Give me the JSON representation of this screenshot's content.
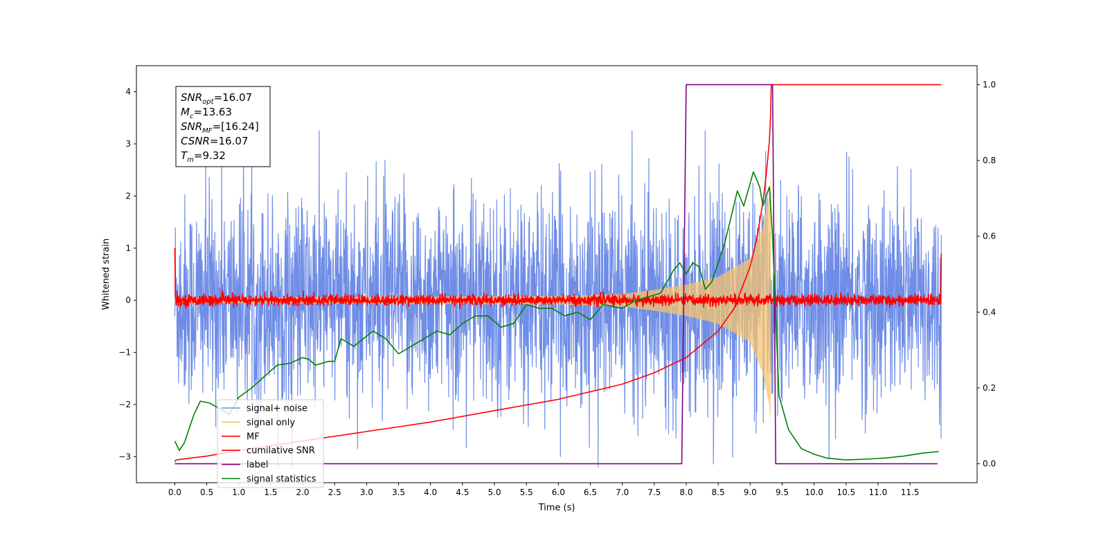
{
  "chart_data": {
    "type": "line",
    "title": "",
    "xlabel": "Time (s)",
    "ylabel": "Whitened strain",
    "xlim": [
      -0.6,
      12.55
    ],
    "ylim": [
      -3.5,
      4.5
    ],
    "y2lim": [
      -0.05,
      1.05
    ],
    "x_ticks": [
      0.0,
      0.5,
      1.0,
      1.5,
      2.0,
      2.5,
      3.0,
      3.5,
      4.0,
      4.5,
      5.0,
      5.5,
      6.0,
      6.5,
      7.0,
      7.5,
      8.0,
      8.5,
      9.0,
      9.5,
      10.0,
      10.5,
      11.0,
      11.5
    ],
    "x_tick_labels": [
      "0.0",
      "0.5",
      "1.0",
      "1.5",
      "2.0",
      "2.5",
      "3.0",
      "3.5",
      "4.0",
      "4.5",
      "5.0",
      "5.5",
      "6.0",
      "6.5",
      "7.0",
      "7.5",
      "8.0",
      "8.5",
      "9.0",
      "9.5",
      "10.0",
      "10.5",
      "11.0",
      "11.5"
    ],
    "y_ticks": [
      -3,
      -2,
      -1,
      0,
      1,
      2,
      3,
      4
    ],
    "y_tick_labels": [
      "−3",
      "−2",
      "−1",
      "0",
      "1",
      "2",
      "3",
      "4"
    ],
    "y2_ticks": [
      0.0,
      0.2,
      0.4,
      0.6,
      0.8,
      1.0
    ],
    "y2_tick_labels": [
      "0.0",
      "0.2",
      "0.4",
      "0.6",
      "0.8",
      "1.0"
    ],
    "grid": false,
    "legend_position": "lower-left",
    "info_box": {
      "position": "top-left",
      "lines": [
        {
          "base": "SNR",
          "sub": "opt",
          "value": "=16.07"
        },
        {
          "base": "M",
          "sub": "c",
          "value": "=13.63"
        },
        {
          "base": "SNR",
          "sub": "MF",
          "value": "=[16.24]"
        },
        {
          "base": "CSNR",
          "sub": "",
          "value": "=16.07"
        },
        {
          "base": "T",
          "sub": "m",
          "value": "=9.32"
        }
      ]
    },
    "series": [
      {
        "name": "signal+ noise",
        "color": "#6f8de6",
        "axis": "left",
        "style": "noise",
        "noise_std": 1.0,
        "x_range": [
          0,
          11.99
        ]
      },
      {
        "name": "signal only",
        "color": "#f5c46e",
        "axis": "left",
        "style": "chirp",
        "x_range": [
          0,
          9.32
        ],
        "envelope": {
          "x": [
            0,
            6.0,
            7.0,
            7.5,
            8.0,
            8.5,
            9.0,
            9.2,
            9.3,
            9.32
          ],
          "y": [
            0.05,
            0.08,
            0.12,
            0.2,
            0.3,
            0.45,
            0.8,
            1.4,
            2.0,
            2.3
          ]
        }
      },
      {
        "name": "MF",
        "color": "#ff0000",
        "axis": "left",
        "style": "noise",
        "noise_std": 0.05,
        "x_range": [
          0,
          11.99
        ]
      },
      {
        "name": "cumilative SNR",
        "color": "#ff0000",
        "axis": "right",
        "x": [
          0.0,
          0.02,
          0.5,
          1.0,
          2.0,
          3.0,
          4.0,
          5.0,
          6.0,
          7.0,
          7.5,
          8.0,
          8.5,
          8.75,
          9.0,
          9.1,
          9.2,
          9.25,
          9.3,
          9.32,
          9.33,
          11.99
        ],
        "y": [
          0.005,
          0.01,
          0.02,
          0.035,
          0.06,
          0.085,
          0.11,
          0.14,
          0.17,
          0.21,
          0.24,
          0.28,
          0.35,
          0.41,
          0.52,
          0.59,
          0.69,
          0.76,
          0.85,
          0.92,
          1.0,
          1.0
        ]
      },
      {
        "name": "label",
        "color": "#800080",
        "axis": "right",
        "x": [
          0.0,
          7.93,
          8.0,
          9.35,
          9.4,
          11.93
        ],
        "y": [
          0.0,
          0.0,
          1.0,
          1.0,
          0.0,
          0.0
        ]
      },
      {
        "name": "signal statistics",
        "color": "#008000",
        "axis": "right",
        "x": [
          0.0,
          0.07,
          0.15,
          0.3,
          0.4,
          0.55,
          0.7,
          0.85,
          1.0,
          1.2,
          1.4,
          1.6,
          1.8,
          2.0,
          2.1,
          2.2,
          2.4,
          2.5,
          2.6,
          2.8,
          2.95,
          3.1,
          3.3,
          3.5,
          3.7,
          3.9,
          4.1,
          4.3,
          4.5,
          4.7,
          4.9,
          5.1,
          5.3,
          5.5,
          5.7,
          5.9,
          6.1,
          6.3,
          6.5,
          6.7,
          7.0,
          7.2,
          7.4,
          7.6,
          7.8,
          7.9,
          8.0,
          8.1,
          8.2,
          8.3,
          8.4,
          8.6,
          8.7,
          8.8,
          8.9,
          9.0,
          9.05,
          9.15,
          9.2,
          9.3,
          9.35,
          9.45,
          9.6,
          9.8,
          10.0,
          10.2,
          10.5,
          10.8,
          11.1,
          11.4,
          11.7,
          11.95
        ],
        "y": [
          0.06,
          0.035,
          0.055,
          0.13,
          0.165,
          0.16,
          0.145,
          0.13,
          0.175,
          0.2,
          0.23,
          0.26,
          0.265,
          0.28,
          0.275,
          0.26,
          0.27,
          0.27,
          0.33,
          0.31,
          0.33,
          0.35,
          0.33,
          0.29,
          0.31,
          0.33,
          0.35,
          0.34,
          0.37,
          0.39,
          0.39,
          0.36,
          0.37,
          0.42,
          0.41,
          0.41,
          0.39,
          0.4,
          0.38,
          0.42,
          0.41,
          0.43,
          0.44,
          0.45,
          0.51,
          0.53,
          0.5,
          0.53,
          0.52,
          0.46,
          0.48,
          0.58,
          0.65,
          0.72,
          0.68,
          0.74,
          0.77,
          0.73,
          0.68,
          0.73,
          0.6,
          0.18,
          0.09,
          0.04,
          0.025,
          0.015,
          0.01,
          0.012,
          0.015,
          0.02,
          0.028,
          0.032
        ]
      }
    ]
  }
}
